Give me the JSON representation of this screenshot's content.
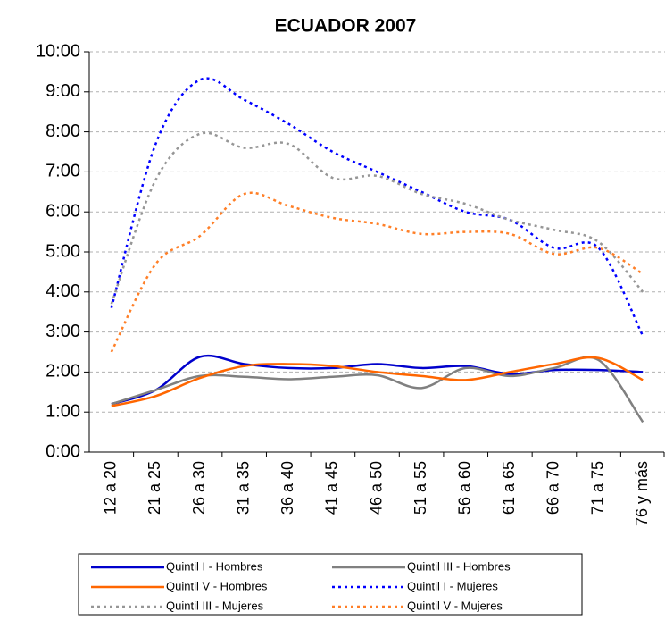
{
  "chart_data": {
    "type": "line",
    "title": "ECUADOR 2007",
    "categories": [
      "12 a 20",
      "21 a 25",
      "26 a 30",
      "31 a 35",
      "36 a 40",
      "41 a 45",
      "46 a 50",
      "51 a 55",
      "56 a 60",
      "61 a 65",
      "66 a 70",
      "71 a 75",
      "76 y más"
    ],
    "series": [
      {
        "name": "Quintil I - Hombres",
        "color": "#0000cc",
        "style": "solid",
        "values": [
          1.2,
          1.55,
          2.38,
          2.2,
          2.1,
          2.1,
          2.2,
          2.1,
          2.15,
          1.95,
          2.05,
          2.05,
          2.0
        ]
      },
      {
        "name": "Quintil III - Hombres",
        "color": "#808080",
        "style": "solid",
        "values": [
          1.2,
          1.55,
          1.9,
          1.88,
          1.82,
          1.88,
          1.92,
          1.6,
          2.1,
          1.9,
          2.1,
          2.3,
          0.75
        ]
      },
      {
        "name": "Quintil V - Hombres",
        "color": "#ff6600",
        "style": "solid",
        "values": [
          1.15,
          1.4,
          1.85,
          2.15,
          2.2,
          2.15,
          2.0,
          1.9,
          1.8,
          2.0,
          2.2,
          2.35,
          1.8
        ]
      },
      {
        "name": "Quintil I - Mujeres",
        "color": "#0000ff",
        "style": "dotted",
        "values": [
          3.6,
          7.7,
          9.3,
          8.8,
          8.2,
          7.5,
          7.0,
          6.5,
          6.0,
          5.8,
          5.1,
          5.1,
          2.9
        ]
      },
      {
        "name": "Quintil III - Mujeres",
        "color": "#969696",
        "style": "dotted",
        "values": [
          3.7,
          6.8,
          7.95,
          7.6,
          7.7,
          6.85,
          6.9,
          6.45,
          6.2,
          5.8,
          5.55,
          5.25,
          4.0
        ]
      },
      {
        "name": "Quintil V - Mujeres",
        "color": "#ff7f27",
        "style": "dotted",
        "values": [
          2.5,
          4.7,
          5.4,
          6.45,
          6.15,
          5.85,
          5.7,
          5.45,
          5.5,
          5.45,
          4.95,
          5.1,
          4.45
        ]
      }
    ],
    "ylim": [
      0,
      10
    ],
    "yticks": [
      {
        "value": 0,
        "label": "0:00"
      },
      {
        "value": 1,
        "label": "1:00"
      },
      {
        "value": 2,
        "label": "2:00"
      },
      {
        "value": 3,
        "label": "3:00"
      },
      {
        "value": 4,
        "label": "4:00"
      },
      {
        "value": 5,
        "label": "5:00"
      },
      {
        "value": 6,
        "label": "6:00"
      },
      {
        "value": 7,
        "label": "7:00"
      },
      {
        "value": 8,
        "label": "8:00"
      },
      {
        "value": 9,
        "label": "9:00"
      },
      {
        "value": 10,
        "label": "10:00"
      }
    ],
    "grid": true,
    "smooth": true,
    "legend": "bottom"
  }
}
